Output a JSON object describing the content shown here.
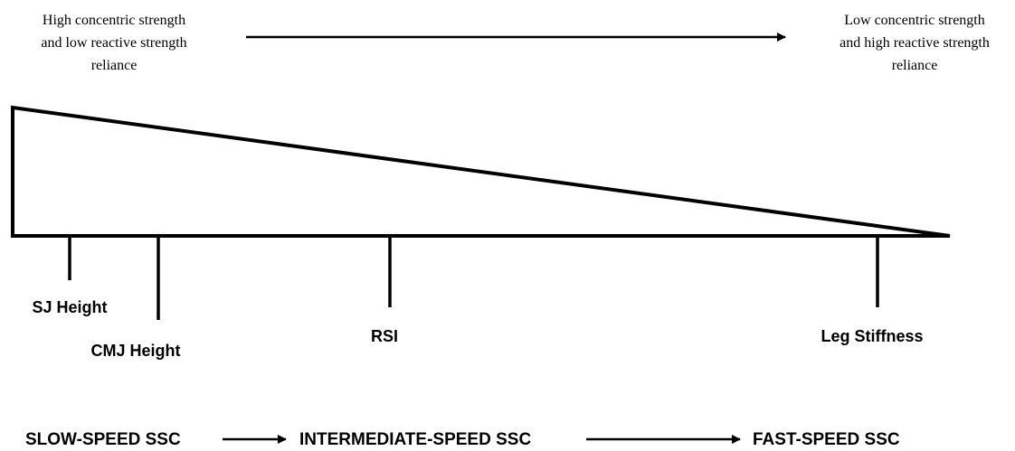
{
  "top": {
    "left_label": [
      "High concentric strength",
      "and low reactive strength",
      "reliance"
    ],
    "right_label": [
      "Low concentric strength",
      "and high reactive strength",
      "reliance"
    ]
  },
  "markers": [
    {
      "label": "SJ Height"
    },
    {
      "label": "CMJ Height"
    },
    {
      "label": "RSI"
    },
    {
      "label": "Leg Stiffness"
    }
  ],
  "bottom": {
    "stages": [
      "SLOW-SPEED SSC",
      "INTERMEDIATE-SPEED SSC",
      "FAST-SPEED SSC"
    ]
  },
  "colors": {
    "ink": "#000000",
    "background": "#ffffff"
  }
}
